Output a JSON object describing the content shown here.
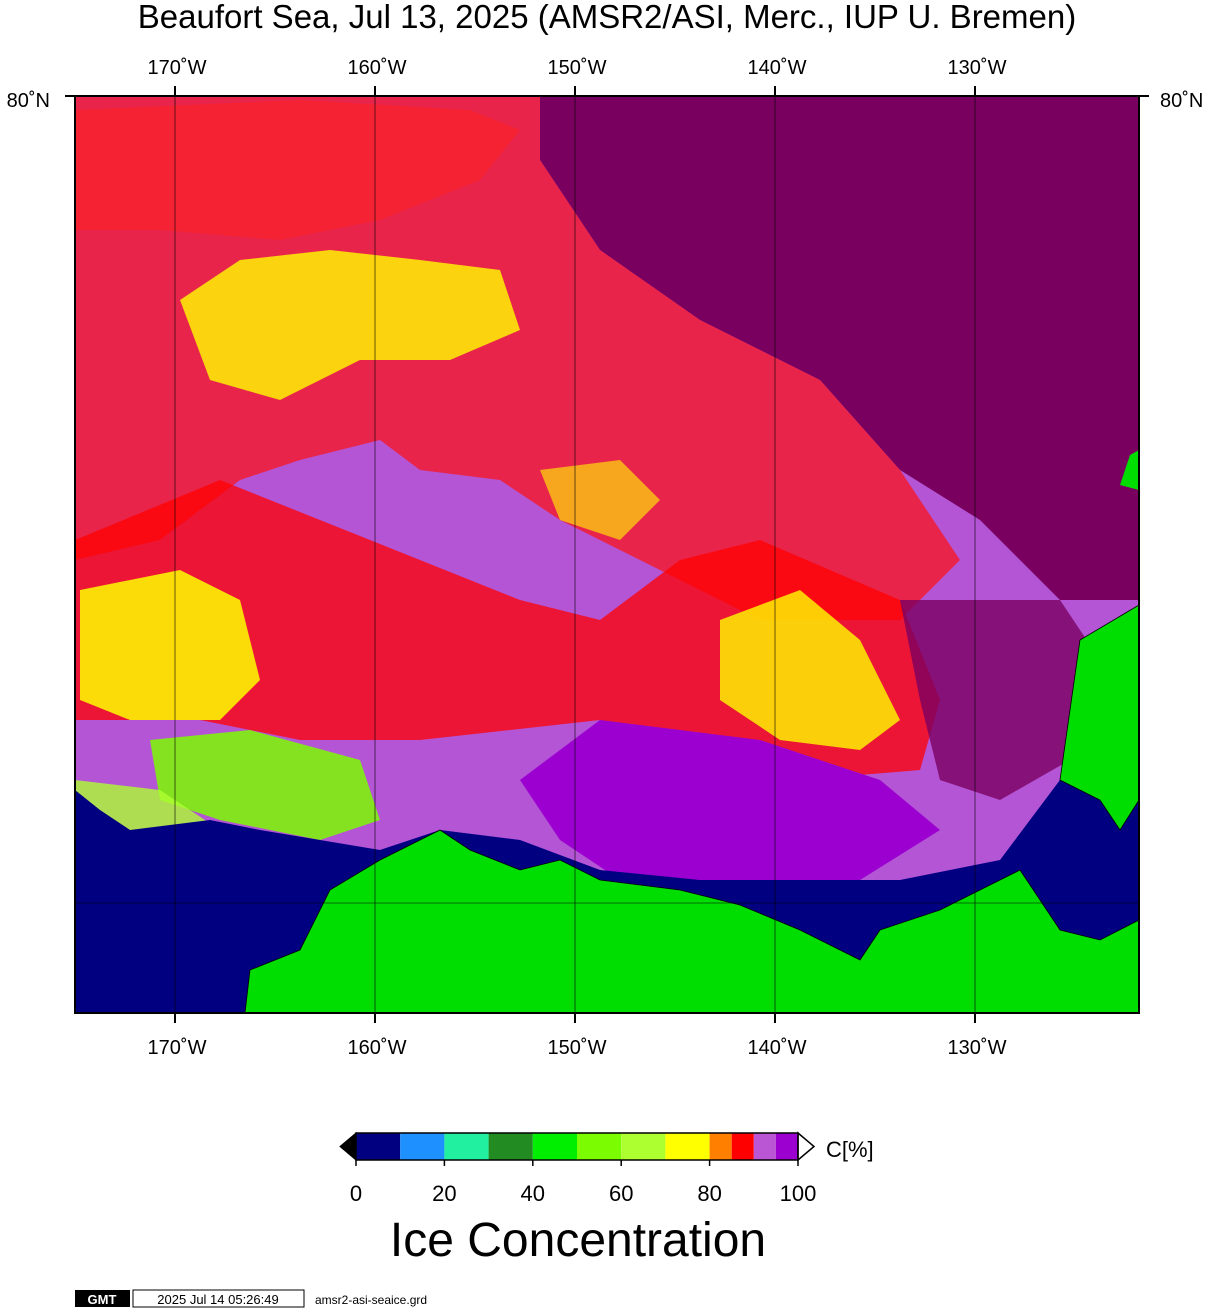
{
  "header": {
    "title": "Beaufort Sea, Jul 13, 2025 (AMSR2/ASI, Merc., IUP U. Bremen)"
  },
  "map": {
    "lonlim": [
      -175,
      -121.8
    ],
    "lonticks": [
      {
        "value": -170,
        "label": "170˚W"
      },
      {
        "value": -160,
        "label": "160˚W"
      },
      {
        "value": -150,
        "label": "150˚W"
      },
      {
        "value": -140,
        "label": "140˚W"
      },
      {
        "value": -130,
        "label": "130˚W"
      }
    ],
    "lat_label": "80˚N"
  },
  "colorbar": {
    "bounds": [
      0,
      10,
      20,
      30,
      40,
      50,
      60,
      70,
      80,
      85,
      90,
      95,
      100
    ],
    "colors": [
      "#000080",
      "#1e90ff",
      "#20f0a0",
      "#228b22",
      "#00ee00",
      "#7cfc00",
      "#adff2f",
      "#ffff00",
      "#ff8000",
      "#ff0000",
      "#ba55d3",
      "#9b00d0"
    ],
    "ticks": [
      0,
      20,
      40,
      60,
      80,
      100
    ],
    "unit_label": "C[%]",
    "title": "Ice Concentration"
  },
  "footer": {
    "logo": "GMT",
    "timestamp": "2025 Jul 14 05:26:49",
    "file": "amsr2-asi-seaice.grd"
  }
}
